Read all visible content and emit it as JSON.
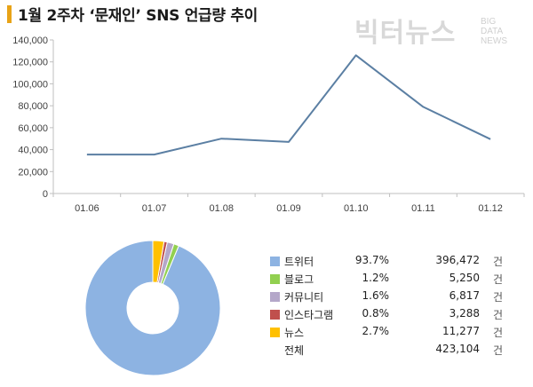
{
  "title": "1월 2주차 ‘문재인’ SNS 언급량 추이",
  "logo": {
    "main": "빅터뉴스",
    "sub": [
      "BIG",
      "DATA",
      "NEWS"
    ]
  },
  "colors": {
    "line": "#5b7fa3",
    "title_accent": "#e8a317"
  },
  "chart_data": [
    {
      "type": "line",
      "categories": [
        "01.06",
        "01.07",
        "01.08",
        "01.09",
        "01.10",
        "01.11",
        "01.12"
      ],
      "series": [
        {
          "values": [
            35500,
            35500,
            50000,
            47000,
            126000,
            79000,
            49500
          ]
        }
      ],
      "ylim": [
        0,
        140000
      ],
      "yticks": [
        "0",
        "20,000",
        "40,000",
        "60,000",
        "80,000",
        "100,000",
        "120,000",
        "140,000"
      ],
      "ytick_values": [
        0,
        20000,
        40000,
        60000,
        80000,
        100000,
        120000,
        140000
      ],
      "grid": false
    },
    {
      "type": "pie",
      "donut": true,
      "slices": [
        {
          "name": "트위터",
          "pct": "93.7%",
          "value": 396472,
          "value_label": "396,472",
          "color": "#8db3e2"
        },
        {
          "name": "블로그",
          "pct": "1.2%",
          "value": 5250,
          "value_label": "5,250",
          "color": "#92d050"
        },
        {
          "name": "커뮤니티",
          "pct": "1.6%",
          "value": 6817,
          "value_label": "6,817",
          "color": "#b4a7c9"
        },
        {
          "name": "인스타그램",
          "pct": "0.8%",
          "value": 3288,
          "value_label": "3,288",
          "color": "#c0504d"
        },
        {
          "name": "뉴스",
          "pct": "2.7%",
          "value": 11277,
          "value_label": "11,277",
          "color": "#ffc000"
        }
      ],
      "total": {
        "name": "전체",
        "value_label": "423,104"
      },
      "unit": "건"
    }
  ]
}
